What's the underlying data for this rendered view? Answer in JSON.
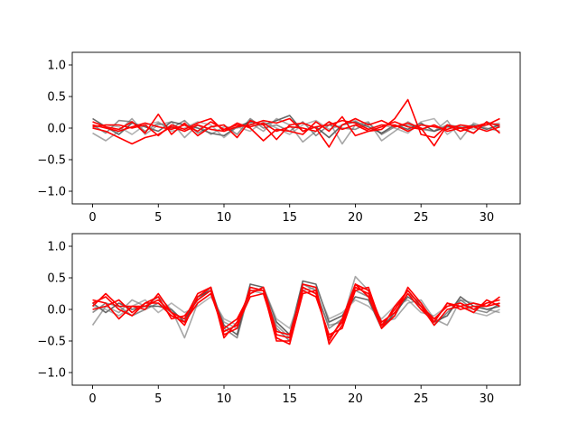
{
  "chart_data": [
    {
      "type": "line",
      "x": [
        0,
        1,
        2,
        3,
        4,
        5,
        6,
        7,
        8,
        9,
        10,
        11,
        12,
        13,
        14,
        15,
        16,
        17,
        18,
        19,
        20,
        21,
        22,
        23,
        24,
        25,
        26,
        27,
        28,
        29,
        30,
        31
      ],
      "xlim": [
        -1.55,
        32.55
      ],
      "ylim": [
        -1.2,
        1.2
      ],
      "xticks": [
        0,
        5,
        10,
        15,
        20,
        25,
        30
      ],
      "xtick_labels": [
        "0",
        "5",
        "10",
        "15",
        "20",
        "25",
        "30"
      ],
      "yticks": [
        -1.0,
        -0.5,
        0.0,
        0.5,
        1.0
      ],
      "ytick_labels": [
        "−1.0",
        "−0.5",
        "0.0",
        "0.5",
        "1.0"
      ],
      "grid": false,
      "series": [
        {
          "color": "#000000",
          "values": [
            0.15,
            0.02,
            -0.1,
            0.08,
            0.02,
            -0.05,
            0.1,
            0.05,
            0.0,
            -0.08,
            -0.12,
            0.02,
            0.1,
            0.05,
            0.12,
            0.2,
            -0.05,
            0.02,
            -0.15,
            0.05,
            0.1,
            0.02,
            -0.08,
            0.05,
            -0.02,
            0.08,
            -0.05,
            0.02,
            0.0,
            0.05,
            -0.02,
            0.05
          ]
        },
        {
          "color": "#404040",
          "values": [
            0.05,
            -0.08,
            0.12,
            0.1,
            -0.05,
            0.08,
            0.0,
            0.12,
            -0.08,
            0.02,
            0.05,
            -0.1,
            0.15,
            0.0,
            0.05,
            -0.05,
            0.1,
            -0.12,
            0.05,
            0.0,
            -0.02,
            0.08,
            -0.1,
            0.02,
            0.05,
            0.0,
            -0.05,
            0.05,
            0.02,
            -0.08,
            0.1,
            0.02
          ]
        },
        {
          "color": "#6a6a6a",
          "values": [
            -0.08,
            -0.2,
            -0.05,
            0.15,
            -0.1,
            0.05,
            0.1,
            -0.15,
            0.05,
            -0.1,
            0.02,
            0.0,
            0.08,
            -0.05,
            0.15,
            0.05,
            -0.22,
            -0.05,
            0.1,
            -0.25,
            0.05,
            0.1,
            -0.2,
            -0.05,
            0.1,
            -0.02,
            -0.05,
            0.12,
            -0.18,
            0.08,
            0.0,
            -0.05
          ]
        },
        {
          "color": "#808080",
          "values": [
            0.0,
            0.05,
            0.02,
            -0.1,
            0.05,
            0.1,
            -0.05,
            0.0,
            0.1,
            0.05,
            -0.15,
            0.02,
            -0.05,
            0.1,
            0.0,
            -0.1,
            0.05,
            0.12,
            -0.02,
            0.05,
            0.12,
            -0.02,
            0.05,
            0.0,
            -0.08,
            0.1,
            0.15,
            -0.1,
            0.05,
            -0.02,
            0.05,
            0.08
          ]
        },
        {
          "color": "#ff0000",
          "values": [
            0.05,
            0.0,
            -0.05,
            0.02,
            0.08,
            0.02,
            -0.02,
            0.05,
            -0.05,
            0.1,
            -0.02,
            0.05,
            0.02,
            0.08,
            -0.05,
            0.02,
            0.0,
            -0.05,
            0.1,
            -0.02,
            0.05,
            -0.05,
            -0.02,
            0.15,
            0.45,
            -0.1,
            -0.15,
            0.05,
            0.0,
            0.02,
            -0.05,
            0.02
          ]
        },
        {
          "color": "#ff0000",
          "values": [
            0.1,
            0.02,
            -0.02,
            0.1,
            -0.08,
            0.22,
            -0.1,
            0.08,
            -0.12,
            0.02,
            0.05,
            -0.15,
            0.12,
            0.05,
            -0.18,
            0.05,
            0.08,
            0.0,
            -0.3,
            0.05,
            0.15,
            0.05,
            0.12,
            0.02,
            0.08,
            0.0,
            -0.28,
            0.05,
            -0.05,
            0.02,
            0.05,
            0.15
          ]
        },
        {
          "color": "#ff0000",
          "values": [
            0.0,
            -0.05,
            -0.15,
            -0.25,
            -0.15,
            -0.1,
            0.02,
            -0.05,
            0.05,
            -0.02,
            -0.05,
            0.08,
            0.0,
            -0.2,
            -0.02,
            -0.05,
            -0.1,
            0.1,
            -0.05,
            0.18,
            -0.12,
            -0.05,
            0.02,
            0.1,
            0.02,
            -0.02,
            0.05,
            -0.05,
            0.0,
            -0.08,
            0.1,
            -0.08
          ]
        },
        {
          "color": "#ff0000",
          "values": [
            0.02,
            0.05,
            0.05,
            0.0,
            0.05,
            -0.12,
            0.05,
            -0.02,
            0.08,
            0.15,
            -0.05,
            0.02,
            0.05,
            0.12,
            0.08,
            0.15,
            -0.05,
            0.02,
            0.05,
            0.12,
            0.08,
            -0.02,
            0.05,
            0.05,
            -0.05,
            0.05,
            0.02,
            -0.02,
            0.05,
            0.02,
            0.08,
            0.05
          ]
        }
      ]
    },
    {
      "type": "line",
      "x": [
        0,
        1,
        2,
        3,
        4,
        5,
        6,
        7,
        8,
        9,
        10,
        11,
        12,
        13,
        14,
        15,
        16,
        17,
        18,
        19,
        20,
        21,
        22,
        23,
        24,
        25,
        26,
        27,
        28,
        29,
        30,
        31
      ],
      "xlim": [
        -1.55,
        32.55
      ],
      "ylim": [
        -1.2,
        1.2
      ],
      "xticks": [
        0,
        5,
        10,
        15,
        20,
        25,
        30
      ],
      "xtick_labels": [
        "0",
        "5",
        "10",
        "15",
        "20",
        "25",
        "30"
      ],
      "yticks": [
        -1.0,
        -0.5,
        0.0,
        0.5,
        1.0
      ],
      "ytick_labels": [
        "−1.0",
        "−0.5",
        "0.0",
        "0.5",
        "1.0"
      ],
      "grid": false,
      "series": [
        {
          "color": "#000000",
          "values": [
            0.1,
            -0.05,
            0.1,
            0.0,
            0.05,
            0.05,
            0.0,
            -0.2,
            0.2,
            0.3,
            -0.25,
            -0.4,
            0.4,
            0.35,
            -0.2,
            -0.4,
            0.45,
            0.4,
            -0.2,
            -0.1,
            0.2,
            0.15,
            -0.3,
            -0.05,
            0.2,
            0.05,
            -0.2,
            -0.1,
            0.2,
            0.05,
            0.0,
            0.05
          ]
        },
        {
          "color": "#404040",
          "values": [
            -0.05,
            0.1,
            0.05,
            -0.1,
            0.0,
            0.1,
            -0.05,
            -0.15,
            0.15,
            0.35,
            -0.3,
            -0.45,
            0.35,
            0.3,
            -0.3,
            -0.5,
            0.4,
            0.3,
            -0.3,
            -0.15,
            0.3,
            0.2,
            -0.25,
            -0.1,
            0.25,
            0.1,
            -0.25,
            -0.05,
            0.15,
            0.0,
            -0.05,
            0.1
          ]
        },
        {
          "color": "#6a6a6a",
          "values": [
            -0.25,
            0.05,
            -0.05,
            0.15,
            0.05,
            0.2,
            0.0,
            -0.45,
            0.1,
            0.25,
            -0.2,
            -0.3,
            0.3,
            0.25,
            -0.25,
            -0.45,
            0.35,
            0.25,
            -0.25,
            -0.2,
            0.52,
            0.3,
            -0.2,
            -0.15,
            0.1,
            0.15,
            -0.15,
            -0.25,
            0.15,
            0.1,
            0.0,
            -0.05
          ]
        },
        {
          "color": "#808080",
          "values": [
            0.05,
            0.0,
            -0.1,
            0.05,
            0.15,
            -0.05,
            0.1,
            -0.05,
            0.05,
            0.2,
            -0.15,
            -0.25,
            0.25,
            0.35,
            -0.15,
            -0.3,
            0.3,
            0.35,
            -0.15,
            -0.05,
            0.15,
            0.05,
            -0.15,
            0.05,
            0.15,
            -0.05,
            -0.1,
            0.05,
            0.1,
            -0.05,
            -0.1,
            0.0
          ]
        },
        {
          "color": "#ff0000",
          "values": [
            0.15,
            0.1,
            -0.15,
            0.05,
            0.0,
            0.25,
            -0.05,
            -0.25,
            0.2,
            0.35,
            -0.45,
            -0.2,
            0.3,
            0.3,
            -0.45,
            -0.55,
            0.25,
            0.3,
            -0.5,
            -0.15,
            0.4,
            0.2,
            -0.3,
            -0.1,
            0.35,
            0.1,
            -0.2,
            0.1,
            0.05,
            -0.05,
            0.15,
            0.05
          ]
        },
        {
          "color": "#ff0000",
          "values": [
            0.1,
            0.2,
            0.0,
            -0.1,
            0.1,
            0.2,
            -0.15,
            -0.1,
            0.15,
            0.3,
            -0.3,
            -0.15,
            0.25,
            0.35,
            -0.35,
            -0.4,
            0.3,
            0.2,
            -0.4,
            -0.3,
            0.3,
            0.35,
            -0.25,
            0.0,
            0.3,
            0.05,
            -0.15,
            0.05,
            0.1,
            0.0,
            0.1,
            0.15
          ]
        },
        {
          "color": "#ff0000",
          "values": [
            0.0,
            0.05,
            0.15,
            -0.05,
            0.1,
            0.1,
            -0.1,
            -0.2,
            0.1,
            0.25,
            -0.35,
            -0.25,
            0.2,
            0.25,
            -0.4,
            -0.45,
            0.35,
            0.25,
            -0.45,
            -0.2,
            0.35,
            0.25,
            -0.2,
            -0.05,
            0.25,
            0.0,
            -0.2,
            0.1,
            0.0,
            0.05,
            0.05,
            0.1
          ]
        },
        {
          "color": "#ff0000",
          "values": [
            0.05,
            0.25,
            0.05,
            0.05,
            0.05,
            0.15,
            -0.05,
            -0.15,
            0.25,
            0.35,
            -0.4,
            -0.3,
            0.35,
            0.3,
            -0.5,
            -0.5,
            0.4,
            0.35,
            -0.55,
            -0.25,
            0.4,
            0.3,
            -0.3,
            0.05,
            0.3,
            0.05,
            -0.25,
            0.0,
            0.05,
            0.1,
            0.05,
            0.2
          ]
        }
      ]
    }
  ]
}
